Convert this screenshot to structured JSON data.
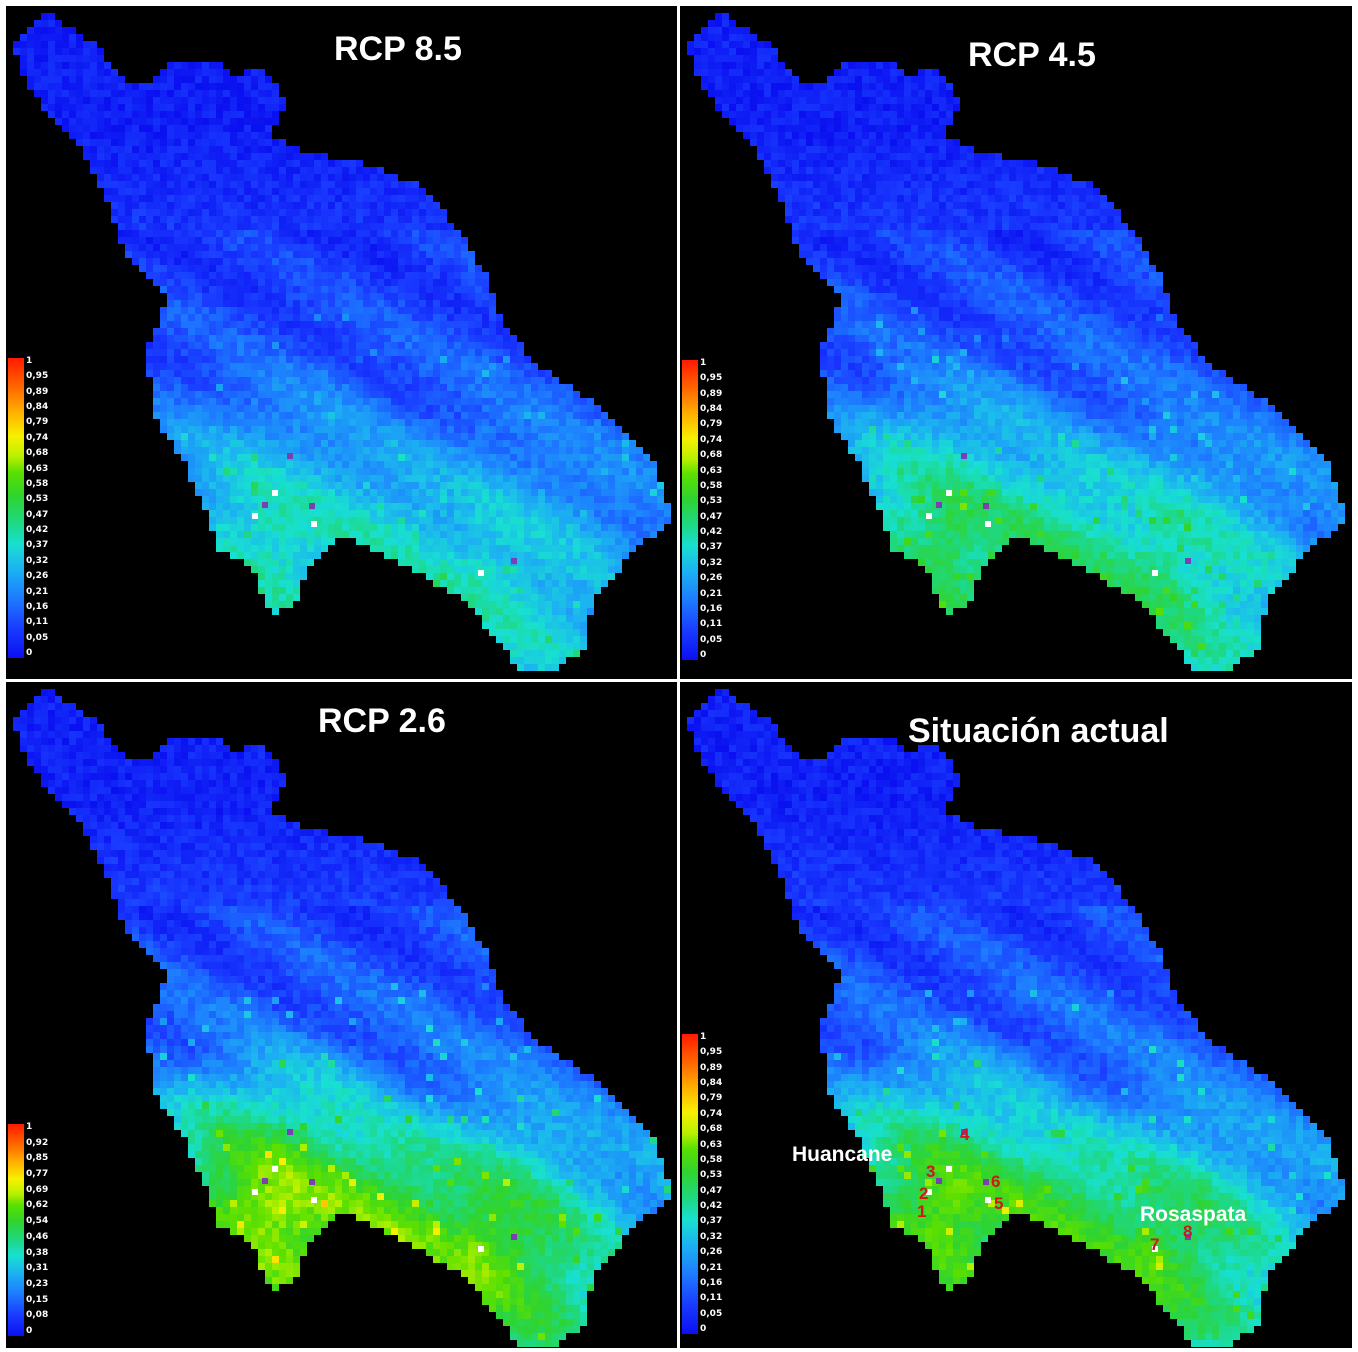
{
  "panels": [
    {
      "title": "RCP 8.5",
      "legend": [
        "1",
        "0,95",
        "0,89",
        "0,84",
        "0,79",
        "0,74",
        "0,68",
        "0,63",
        "0,58",
        "0,53",
        "0,47",
        "0,42",
        "0,37",
        "0,32",
        "0,26",
        "0,21",
        "0,16",
        "0,11",
        "0,05",
        "0"
      ]
    },
    {
      "title": "RCP 4.5",
      "legend": [
        "1",
        "0,95",
        "0,89",
        "0,84",
        "0,79",
        "0,74",
        "0,68",
        "0,63",
        "0,58",
        "0,53",
        "0,47",
        "0,42",
        "0,37",
        "0,32",
        "0,26",
        "0,21",
        "0,16",
        "0,11",
        "0,05",
        "0"
      ]
    },
    {
      "title": "RCP 2.6",
      "legend": [
        "1",
        "0,92",
        "0,85",
        "0,77",
        "0,69",
        "0,62",
        "0,54",
        "0,46",
        "0,38",
        "0,31",
        "0,23",
        "0,15",
        "0,08",
        "0"
      ]
    },
    {
      "title": "Situación actual",
      "legend": [
        "1",
        "0,95",
        "0,89",
        "0,84",
        "0,79",
        "0,74",
        "0,68",
        "0,63",
        "0,58",
        "0,53",
        "0,47",
        "0,42",
        "0,37",
        "0,32",
        "0,26",
        "0,21",
        "0,16",
        "0,11",
        "0,05",
        "0"
      ]
    }
  ],
  "places": {
    "huancane": "Huancane",
    "rosaspata": "Rosaspata"
  },
  "sites": [
    "1",
    "2",
    "3",
    "4",
    "5",
    "6",
    "7",
    "8"
  ],
  "colors": {
    "background": "#000000",
    "title": "#ffffff",
    "site_number": "#d01818",
    "site_marker_white": "#ffffff",
    "site_marker_purple": "#7a3fb0"
  }
}
